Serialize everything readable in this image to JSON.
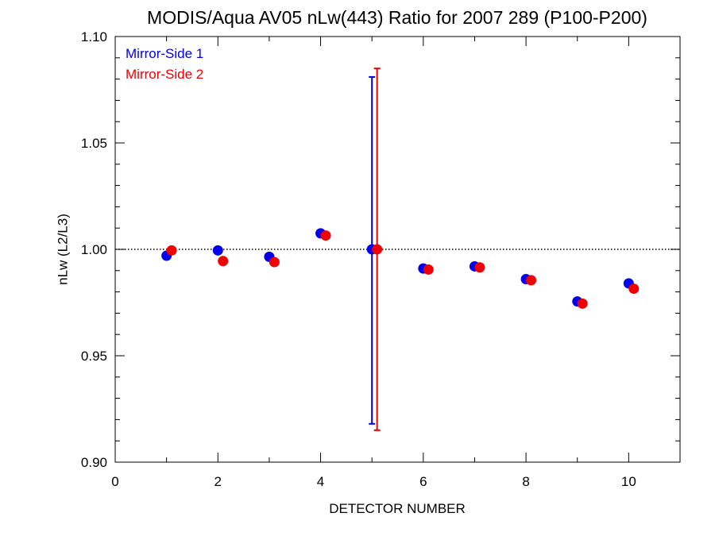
{
  "chart_data": {
    "type": "scatter",
    "title": "MODIS/Aqua AV05 nLw(443) Ratio for 2007 289 (P100-P200)",
    "xlabel": "DETECTOR NUMBER",
    "ylabel": "nLw (L2/L3)",
    "xlim": [
      0,
      11
    ],
    "ylim": [
      0.9,
      1.1
    ],
    "x_ticks": [
      0,
      2,
      4,
      6,
      8,
      10
    ],
    "x_tick_labels": [
      "0",
      "2",
      "4",
      "6",
      "8",
      "10"
    ],
    "y_ticks": [
      0.9,
      0.95,
      1.0,
      1.05,
      1.1
    ],
    "y_tick_labels": [
      "0.90",
      "0.95",
      "1.00",
      "1.05",
      "1.10"
    ],
    "reference_line": {
      "y": 1.0,
      "style": "dotted"
    },
    "legend_position": "top-left",
    "series": [
      {
        "name": "Mirror-Side 1",
        "color": "#0000ee",
        "x": [
          1,
          2,
          3,
          4,
          5,
          6,
          7,
          8,
          9,
          10
        ],
        "y": [
          0.997,
          0.9995,
          0.9965,
          1.0075,
          1.0,
          0.991,
          0.992,
          0.986,
          0.9755,
          0.984
        ],
        "error_bars": [
          {
            "x": 5,
            "low": 0.918,
            "high": 1.081
          }
        ]
      },
      {
        "name": "Mirror-Side 2",
        "color": "#ee0000",
        "x": [
          1.1,
          2.1,
          3.1,
          4.1,
          5.1,
          6.1,
          7.1,
          8.1,
          9.1,
          10.1
        ],
        "y": [
          0.9995,
          0.9945,
          0.994,
          1.0065,
          1.0,
          0.9905,
          0.9915,
          0.9855,
          0.9745,
          0.9815
        ],
        "error_bars": [
          {
            "x": 5.1,
            "low": 0.915,
            "high": 1.085
          }
        ]
      }
    ]
  }
}
